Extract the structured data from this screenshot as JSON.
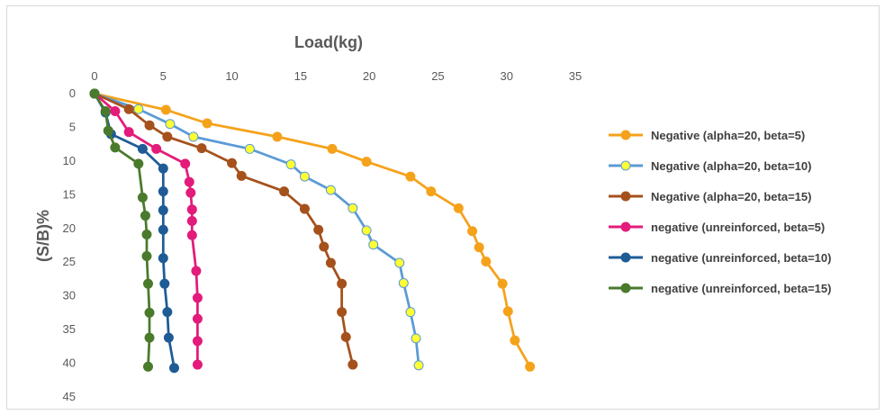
{
  "chart_data": {
    "type": "line",
    "title": "",
    "xlabel": "Load(kg)",
    "ylabel": "(S/B)%",
    "xlim": [
      0,
      35
    ],
    "ylim": [
      0,
      45
    ],
    "x_ticks": [
      "0",
      "5",
      "10",
      "15",
      "20",
      "25",
      "30",
      "35"
    ],
    "y_ticks": [
      "0",
      "5",
      "10",
      "15",
      "20",
      "25",
      "30",
      "35",
      "40",
      "45"
    ],
    "x_axis_position": "top",
    "y_axis_reversed": true,
    "grid": false,
    "legend_position": "right",
    "series": [
      {
        "name": "Negative (alpha=20, beta=5)",
        "color": "#f5a21b",
        "marker_fill": "#f5a21b",
        "points": [
          [
            0,
            0
          ],
          [
            5.2,
            2.4
          ],
          [
            8.2,
            4.4
          ],
          [
            13.3,
            6.4
          ],
          [
            17.3,
            8.2
          ],
          [
            19.8,
            10.1
          ],
          [
            23,
            12.3
          ],
          [
            24.5,
            14.5
          ],
          [
            26.5,
            17
          ],
          [
            27.5,
            20.4
          ],
          [
            28,
            22.8
          ],
          [
            28.5,
            24.9
          ],
          [
            29.7,
            28.2
          ],
          [
            30.1,
            32.3
          ],
          [
            30.6,
            36.6
          ],
          [
            31.7,
            40.5
          ]
        ]
      },
      {
        "name": "Negative (alpha=20, beta=10)",
        "color": "#5b9bd5",
        "marker_fill": "#ffff33",
        "points": [
          [
            0,
            0
          ],
          [
            3.2,
            2.3
          ],
          [
            5.5,
            4.5
          ],
          [
            7.2,
            6.4
          ],
          [
            11.3,
            8.2
          ],
          [
            14.3,
            10.5
          ],
          [
            15.3,
            12.3
          ],
          [
            17.2,
            14.3
          ],
          [
            18.8,
            17
          ],
          [
            19.8,
            20.3
          ],
          [
            20.3,
            22.4
          ],
          [
            22.2,
            25.1
          ],
          [
            22.5,
            28.1
          ],
          [
            23,
            32.4
          ],
          [
            23.4,
            36.3
          ],
          [
            23.6,
            40.3
          ]
        ]
      },
      {
        "name": "Negative (alpha=20, beta=15)",
        "color": "#a5511c",
        "marker_fill": "#a5511c",
        "points": [
          [
            0,
            0
          ],
          [
            2.5,
            2.3
          ],
          [
            4,
            4.7
          ],
          [
            5.3,
            6.4
          ],
          [
            7.8,
            8.1
          ],
          [
            10,
            10.3
          ],
          [
            10.7,
            12.2
          ],
          [
            13.8,
            14.5
          ],
          [
            15.3,
            17.1
          ],
          [
            16.3,
            20.2
          ],
          [
            16.7,
            22.7
          ],
          [
            17.2,
            25.1
          ],
          [
            18,
            28.2
          ],
          [
            18,
            32.4
          ],
          [
            18.3,
            36.1
          ],
          [
            18.8,
            40.2
          ]
        ]
      },
      {
        "name": "negative (unreinforced, beta=5)",
        "color": "#e31b7a",
        "marker_fill": "#e31b7a",
        "points": [
          [
            0,
            0
          ],
          [
            1.5,
            2.6
          ],
          [
            2.5,
            5.7
          ],
          [
            4.5,
            8.2
          ],
          [
            6.6,
            10.4
          ],
          [
            6.9,
            13.1
          ],
          [
            7,
            14.7
          ],
          [
            7.1,
            17.2
          ],
          [
            7.1,
            18.9
          ],
          [
            7.1,
            21
          ],
          [
            7.4,
            26.3
          ],
          [
            7.5,
            30.3
          ],
          [
            7.5,
            33.4
          ],
          [
            7.5,
            36.7
          ],
          [
            7.5,
            40.2
          ]
        ]
      },
      {
        "name": "negative (unreinforced, beta=10)",
        "color": "#1f5c96",
        "marker_fill": "#1f5c96",
        "points": [
          [
            0,
            0
          ],
          [
            0.8,
            2.8
          ],
          [
            1.2,
            6
          ],
          [
            3.5,
            8.2
          ],
          [
            5,
            11.1
          ],
          [
            5,
            14.5
          ],
          [
            5,
            17.3
          ],
          [
            5,
            20.2
          ],
          [
            5,
            24.4
          ],
          [
            5.1,
            28.2
          ],
          [
            5.3,
            32.4
          ],
          [
            5.4,
            36.2
          ],
          [
            5.8,
            40.7
          ]
        ]
      },
      {
        "name": "negative (unreinforced, beta=15)",
        "color": "#4a7a2c",
        "marker_fill": "#4a7a2c",
        "points": [
          [
            0,
            0
          ],
          [
            0.8,
            2.6
          ],
          [
            1,
            5.5
          ],
          [
            1.5,
            8
          ],
          [
            3.2,
            10.4
          ],
          [
            3.5,
            15.4
          ],
          [
            3.7,
            18.1
          ],
          [
            3.8,
            20.9
          ],
          [
            3.8,
            24.1
          ],
          [
            3.9,
            28.2
          ],
          [
            4,
            32.5
          ],
          [
            4,
            36.2
          ],
          [
            3.9,
            40.5
          ]
        ]
      }
    ]
  }
}
